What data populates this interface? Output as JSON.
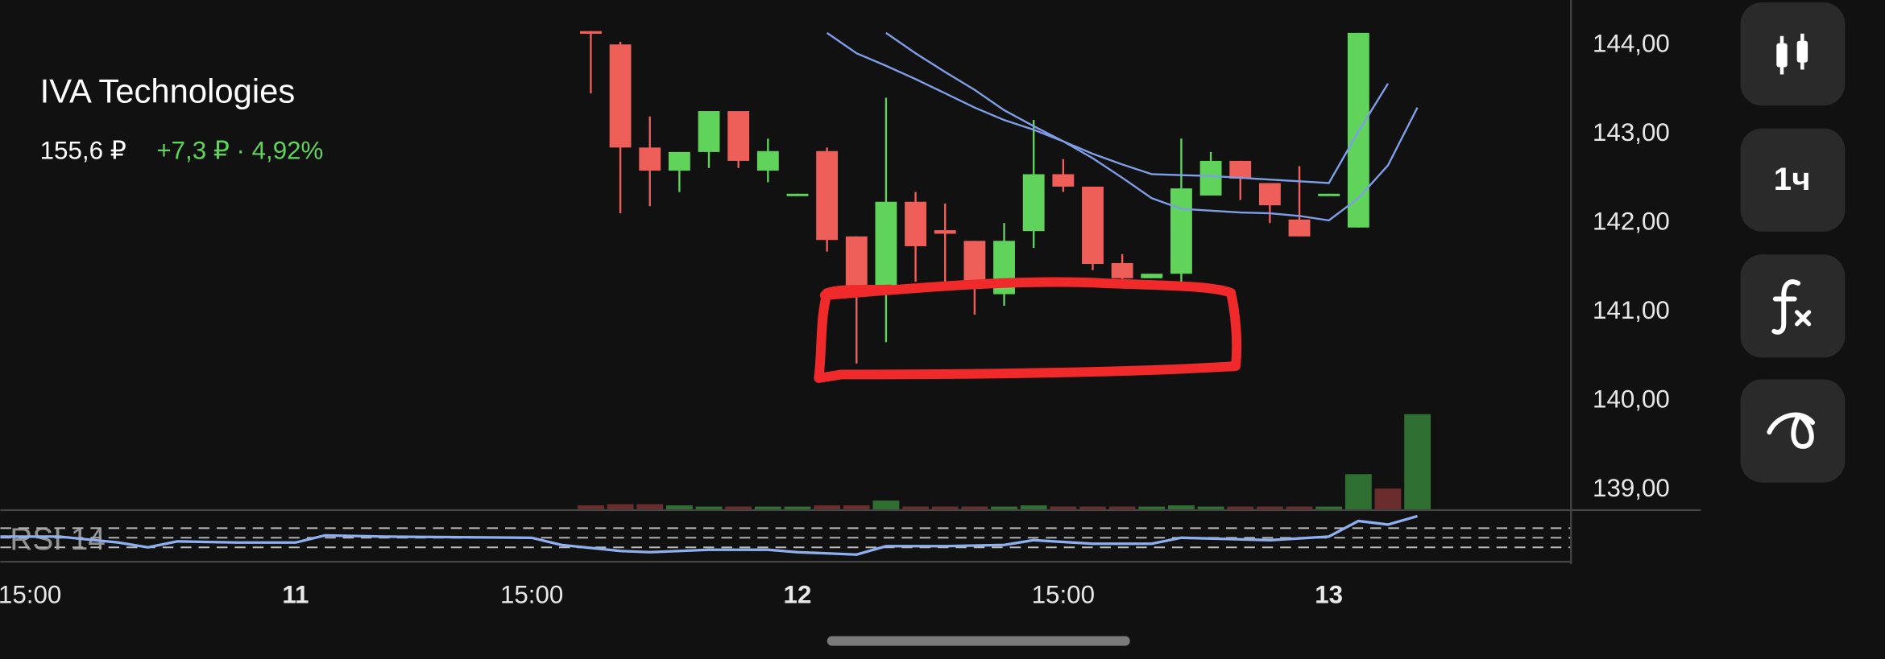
{
  "app": {
    "title": "IVA Technologies",
    "price": "155,6 ₽",
    "change": "+7,3 ₽ · 4,92%",
    "interval": "1ч"
  },
  "chart_data": {
    "type": "candlestick",
    "x": [
      19,
      20,
      21,
      22,
      23,
      24,
      25,
      26,
      27,
      28,
      29,
      30,
      31,
      32,
      33,
      34,
      35,
      36,
      37,
      38,
      39,
      40,
      41,
      42,
      43,
      44,
      45
    ],
    "open": [
      144.16,
      144.01,
      142.85,
      142.59,
      142.8,
      143.26,
      142.59,
      142.32,
      142.81,
      141.85,
      141.2,
      142.24,
      141.92,
      141.8,
      141.2,
      141.91,
      142.55,
      142.41,
      141.55,
      141.38,
      141.43,
      142.31,
      142.7,
      142.45,
      142.04,
      142.32,
      141.95
    ],
    "high": [
      144.16,
      144.04,
      143.2,
      142.8,
      143.26,
      143.26,
      142.95,
      142.33,
      142.85,
      141.85,
      143.41,
      142.35,
      142.22,
      141.8,
      142.0,
      143.16,
      142.72,
      142.41,
      141.65,
      141.43,
      142.95,
      142.8,
      142.7,
      142.45,
      142.64,
      142.33,
      144.14
    ],
    "low": [
      143.46,
      142.11,
      142.19,
      142.35,
      142.62,
      142.62,
      142.46,
      142.32,
      141.68,
      140.42,
      140.66,
      141.34,
      141.27,
      140.97,
      141.07,
      141.72,
      142.35,
      141.47,
      141.3,
      141.38,
      141.34,
      142.31,
      142.26,
      142.0,
      141.85,
      142.32,
      141.95
    ],
    "close": [
      144.13,
      142.85,
      142.59,
      142.8,
      143.26,
      142.7,
      142.81,
      142.33,
      141.81,
      141.2,
      142.24,
      141.74,
      141.88,
      141.34,
      141.8,
      142.55,
      142.41,
      141.54,
      141.38,
      141.43,
      142.39,
      142.7,
      142.5,
      142.2,
      141.85,
      142.33,
      144.14
    ],
    "up_color": "#5fd35a",
    "down_color": "#ef5f5a",
    "xlim": [
      -1,
      52.2
    ],
    "ylim": [
      138.77,
      144.51
    ],
    "xticks": [
      {
        "value": 0,
        "label": "15:00"
      },
      {
        "value": 9,
        "label": "11",
        "bold": true
      },
      {
        "value": 17,
        "label": "15:00"
      },
      {
        "value": 26,
        "label": "12",
        "bold": true
      },
      {
        "value": 35,
        "label": "15:00"
      },
      {
        "value": 44,
        "label": "13",
        "bold": true
      }
    ],
    "yticks": [
      {
        "value": 144,
        "label": "144,00"
      },
      {
        "value": 143,
        "label": "143,00"
      },
      {
        "value": 142,
        "label": "142,00"
      },
      {
        "value": 141,
        "label": "141,00"
      },
      {
        "value": 140,
        "label": "140,00"
      },
      {
        "value": 139,
        "label": "139,00"
      }
    ],
    "grid": true,
    "lines": [
      {
        "color": "#7f9ee8",
        "x": [
          27,
          28,
          29,
          30,
          31,
          32,
          33,
          34,
          35,
          36,
          37,
          38,
          39,
          40,
          41,
          42,
          43,
          44,
          45,
          46
        ],
        "values": [
          144.14,
          143.91,
          143.77,
          143.62,
          143.46,
          143.3,
          143.16,
          143.05,
          142.92,
          142.78,
          142.66,
          142.55,
          142.54,
          142.53,
          142.51,
          142.49,
          142.47,
          142.45,
          143.03,
          143.57
        ]
      },
      {
        "color": "#7f9ee8",
        "x": [
          29,
          30,
          31,
          32,
          33,
          34,
          35,
          36,
          37,
          38,
          39,
          40,
          41,
          42,
          43,
          44,
          45,
          46,
          47
        ],
        "values": [
          144.14,
          143.91,
          143.7,
          143.5,
          143.27,
          143.09,
          142.92,
          142.73,
          142.51,
          142.28,
          142.16,
          142.14,
          142.12,
          142.11,
          142.08,
          142.03,
          142.28,
          142.65,
          143.3
        ]
      }
    ],
    "volume": {
      "ylim": [
        0,
        100
      ],
      "x": [
        19,
        20,
        21,
        22,
        23,
        24,
        25,
        26,
        27,
        28,
        29,
        30,
        31,
        32,
        33,
        34,
        35,
        36,
        37,
        38,
        39,
        40,
        41,
        42,
        43,
        44,
        45,
        46,
        47
      ],
      "values": [
        4,
        5,
        5,
        4,
        3,
        3,
        3,
        3,
        4,
        4,
        8,
        3,
        3,
        3,
        3,
        4,
        3,
        3,
        3,
        3,
        4,
        3,
        3,
        3,
        3,
        3,
        30,
        18,
        80
      ],
      "colors": [
        "#6a2c2c",
        "#6a2c2c",
        "#6a2c2c",
        "#2f6f31",
        "#2f6f31",
        "#6a2c2c",
        "#2f6f31",
        "#2f6f31",
        "#6a2c2c",
        "#6a2c2c",
        "#2f6f31",
        "#6a2c2c",
        "#6a2c2c",
        "#6a2c2c",
        "#2f6f31",
        "#2f6f31",
        "#6a2c2c",
        "#6a2c2c",
        "#6a2c2c",
        "#2f6f31",
        "#2f6f31",
        "#2f6f31",
        "#6a2c2c",
        "#6a2c2c",
        "#6a2c2c",
        "#2f6f31",
        "#2f6f31",
        "#6a2c2c",
        "#2f6f31"
      ]
    },
    "rsi": {
      "label": "RSI 14",
      "color": "#8fb0f0",
      "ylim": [
        0,
        100
      ],
      "levels": [
        70,
        50,
        30
      ],
      "x": [
        -1,
        1,
        3,
        4,
        5,
        7,
        9,
        10,
        12,
        17,
        18,
        20,
        21,
        23,
        25,
        26,
        28,
        29,
        31,
        33,
        34,
        36,
        38,
        39,
        42,
        44,
        45,
        46,
        47
      ],
      "values": [
        52.5,
        52.5,
        40,
        30,
        42.5,
        40,
        40,
        55,
        52.5,
        50,
        35,
        22.5,
        20,
        25,
        25,
        20,
        15,
        32.5,
        32.5,
        35,
        45,
        37.5,
        37.5,
        50,
        45,
        52.5,
        85,
        77.5,
        95
      ]
    }
  }
}
